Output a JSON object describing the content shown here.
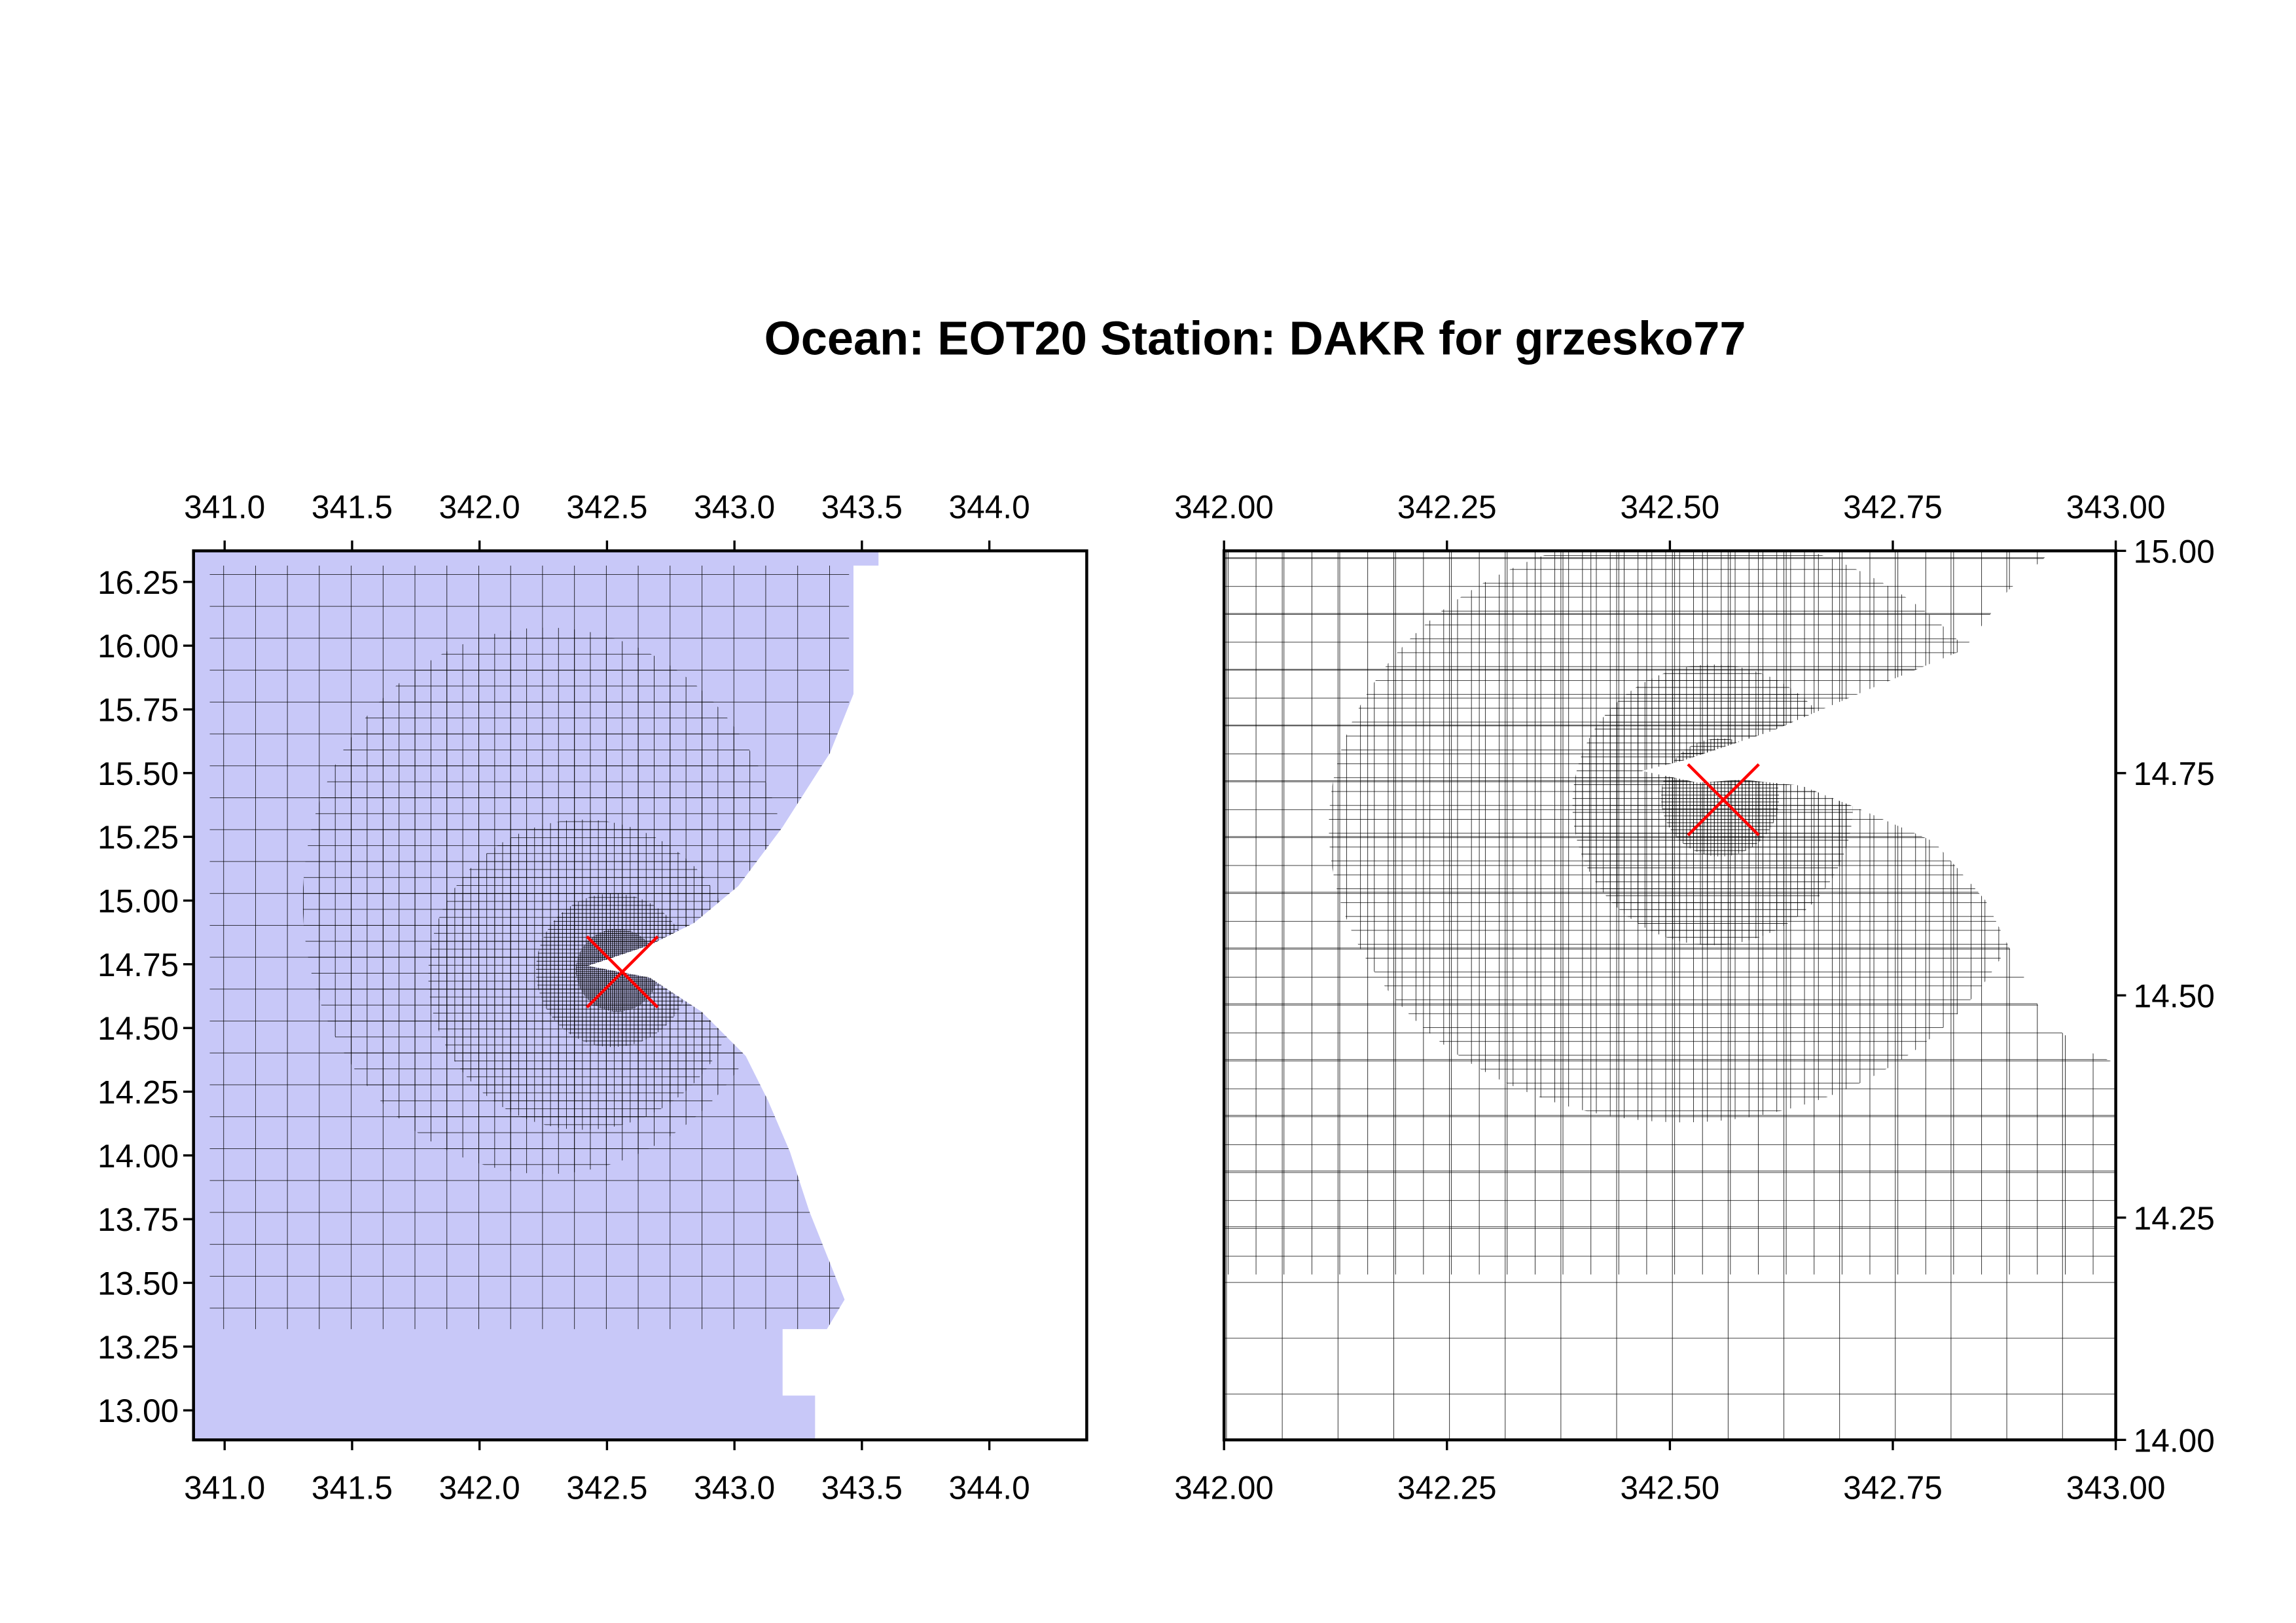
{
  "title": "Ocean: EOT20  Station: DAKR  for grzesko77",
  "chart_data": [
    {
      "type": "grid",
      "xlim": [
        340.878,
        344.382
      ],
      "ylim": [
        12.884,
        16.372
      ],
      "xticks": [
        {
          "value": 341,
          "label": "341.0"
        },
        341.5,
        {
          "value": 342,
          "label": "342.0"
        },
        342.5,
        {
          "value": 343,
          "label": "343.0"
        },
        343.5,
        {
          "value": 344,
          "label": "344.0"
        }
      ],
      "yticks": [
        {
          "value": 13,
          "label": "13.00"
        },
        13.25,
        {
          "value": 13.5,
          "label": "13.50"
        },
        13.75,
        {
          "value": 14,
          "label": "14.00"
        },
        14.25,
        {
          "value": 14.5,
          "label": "14.50"
        },
        14.75,
        {
          "value": 15,
          "label": "15.00"
        },
        15.25,
        {
          "value": 15.5,
          "label": "15.50"
        },
        15.75,
        {
          "value": 16,
          "label": "16.00"
        },
        16.25
      ],
      "yaxis_side": "left",
      "ocean_color": "#c8c8f8",
      "station": {
        "x": 342.56,
        "y": 14.72,
        "color": "#ff0000"
      }
    },
    {
      "type": "grid",
      "xlim": [
        342,
        343
      ],
      "ylim": [
        14,
        15
      ],
      "xticks": [
        {
          "value": 342,
          "label": "342.00"
        },
        342.25,
        {
          "value": 342.5,
          "label": "342.50"
        },
        342.75,
        {
          "value": 343,
          "label": "343.00"
        }
      ],
      "yticks": [
        {
          "value": 14,
          "label": "14.00"
        },
        14.25,
        {
          "value": 14.5,
          "label": "14.50"
        },
        14.75,
        {
          "value": 15,
          "label": "15.00"
        }
      ],
      "yaxis_side": "right",
      "station": {
        "x": 342.56,
        "y": 14.72,
        "color": "#ff0000"
      }
    }
  ]
}
